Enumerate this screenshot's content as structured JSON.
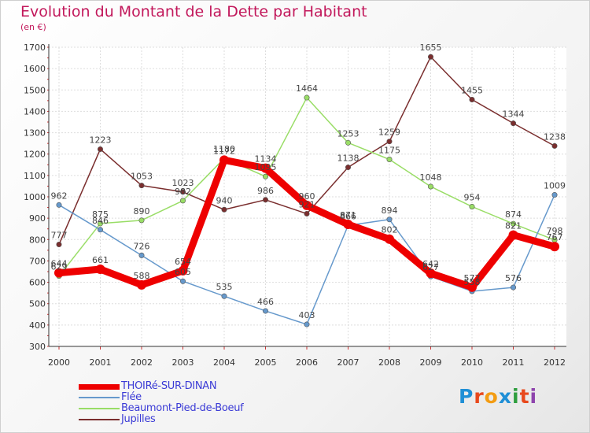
{
  "title": "Evolution du Montant de la Dette par Habitant",
  "unit_label": "(en €)",
  "logo": {
    "letters": [
      "P",
      "r",
      "o",
      "x",
      "i",
      "t",
      "i"
    ],
    "colors": [
      "#1f8fd6",
      "#e8491d",
      "#f39c12",
      "#1f8fd6",
      "#2e9e3e",
      "#e8491d",
      "#8e44ad"
    ]
  },
  "chart_data": {
    "type": "line",
    "title": "Evolution du Montant de la Dette par Habitant",
    "ylabel": "(en €)",
    "xlabel": "",
    "x": [
      "2000",
      "2001",
      "2002",
      "2003",
      "2004",
      "2005",
      "2006",
      "2007",
      "2008",
      "2009",
      "2010",
      "2011",
      "2012"
    ],
    "ylim": [
      300,
      1700
    ],
    "yticks": [
      300,
      400,
      500,
      600,
      700,
      800,
      900,
      1000,
      1100,
      1200,
      1300,
      1400,
      1500,
      1600,
      1700
    ],
    "grid": true,
    "legend_position": "bottom-left",
    "series": [
      {
        "name": "THOIRé-SUR-DINAN",
        "color": "#ee0000",
        "values": [
          644,
          661,
          588,
          654,
          1172,
          1134,
          960,
          871,
          802,
          642,
          577,
          821,
          767
        ]
      },
      {
        "name": "Flée",
        "color": "#6699cc",
        "values": [
          962,
          846,
          726,
          605,
          535,
          466,
          403,
          866,
          894,
          627,
          558,
          576,
          1009
        ]
      },
      {
        "name": "Beaumont-Pied-de-Boeuf",
        "color": "#99dd66",
        "values": [
          629,
          875,
          890,
          982,
          1180,
          1095,
          1464,
          1253,
          1175,
          1048,
          954,
          874,
          798
        ]
      },
      {
        "name": "Jupilles",
        "color": "#7a2e2e",
        "values": [
          777,
          1223,
          1053,
          1023,
          940,
          986,
          921,
          1138,
          1259,
          1655,
          1455,
          1344,
          1238
        ]
      }
    ]
  }
}
